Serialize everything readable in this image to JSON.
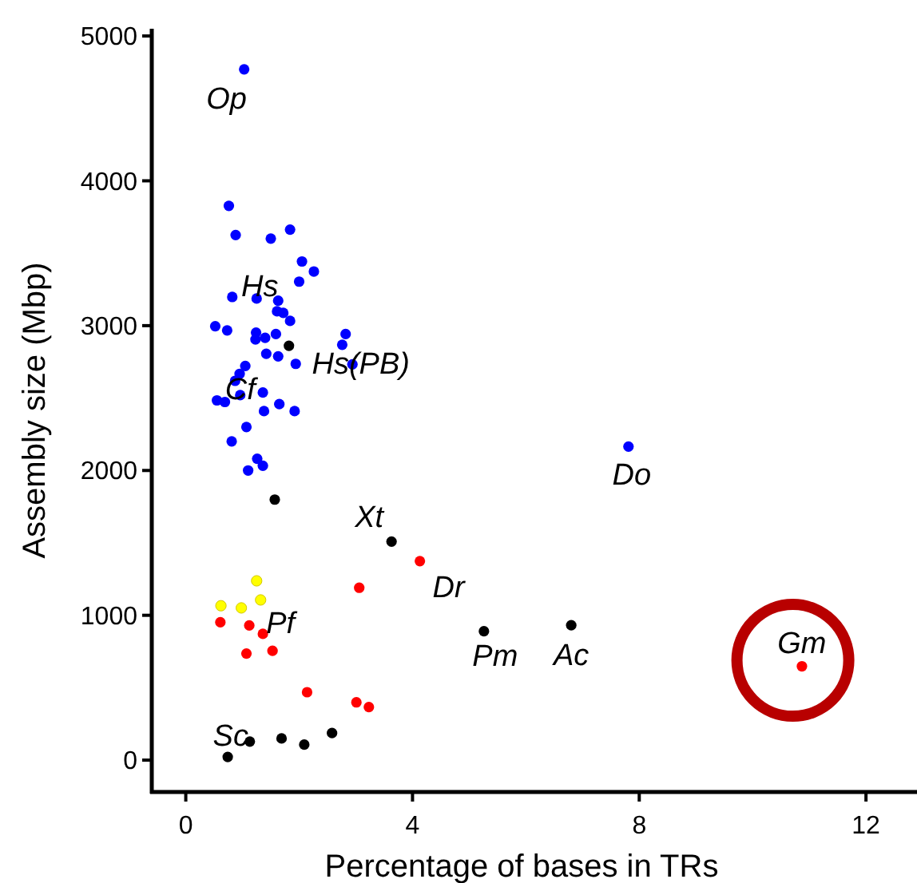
{
  "chart_data": {
    "type": "scatter",
    "xlabel": "Percentage of bases in TRs",
    "ylabel": "Assembly size (Mbp)",
    "xlim": [
      -0.6,
      12.9
    ],
    "ylim": [
      -220,
      5050
    ],
    "xticks": [
      0,
      4,
      8,
      12
    ],
    "yticks": [
      0,
      1000,
      2000,
      3000,
      4000,
      5000
    ],
    "grid": false,
    "marker": "circle",
    "series": [
      {
        "color": "#0000ff",
        "x": [
          1.03,
          0.76,
          0.88,
          1.5,
          1.84,
          2.05,
          2.26,
          2.0,
          0.82,
          1.25,
          1.63,
          1.61,
          1.72,
          1.84,
          0.52,
          0.73,
          1.24,
          1.23,
          1.4,
          1.59,
          2.82,
          2.76,
          2.94,
          1.42,
          1.63,
          1.94,
          1.05,
          0.95,
          0.87,
          0.96,
          1.36,
          0.55,
          0.69,
          1.38,
          1.65,
          1.92,
          1.07,
          0.81,
          1.1,
          1.26,
          1.36,
          7.81
        ],
        "values": [
          4770,
          3827,
          3626,
          3601,
          3663,
          3443,
          3374,
          3304,
          3198,
          3187,
          3172,
          3099,
          3088,
          3033,
          2996,
          2967,
          2952,
          2905,
          2916,
          2942,
          2942,
          2868,
          2733,
          2806,
          2788,
          2736,
          2722,
          2667,
          2619,
          2520,
          2538,
          2484,
          2473,
          2410,
          2458,
          2410,
          2300,
          2201,
          2000,
          2081,
          2033,
          2165
        ]
      },
      {
        "color": "#000000",
        "x": [
          1.82,
          1.57,
          3.63,
          5.26,
          6.8,
          0.74,
          1.13,
          1.69,
          2.09,
          2.58
        ],
        "values": [
          2861,
          1799,
          1509,
          890,
          931,
          22,
          128,
          150,
          107,
          187
        ]
      },
      {
        "color": "#ff0000",
        "x": [
          4.13,
          3.06,
          0.61,
          1.12,
          1.36,
          1.07,
          1.53,
          2.14,
          3.01,
          3.23,
          10.87
        ],
        "values": [
          1374,
          1190,
          952,
          930,
          872,
          736,
          755,
          469,
          399,
          366,
          648
        ]
      },
      {
        "color": "#ffff00",
        "x": [
          1.25,
          0.62,
          0.98,
          1.32
        ],
        "values": [
          1238,
          1066,
          1051,
          1106
        ]
      }
    ],
    "annotations": [
      {
        "text": "Op",
        "x": 1.03,
        "y": 4770
      },
      {
        "text": "Hs",
        "x": 1.25,
        "y": 3187
      },
      {
        "text": "Hs(PB)",
        "x": 1.82,
        "y": 2861
      },
      {
        "text": "Cf",
        "x": 0.96,
        "y": 2520
      },
      {
        "text": "Xt",
        "x": 3.63,
        "y": 1509
      },
      {
        "text": "Dr",
        "x": 4.13,
        "y": 1374
      },
      {
        "text": "Pf",
        "x": 1.36,
        "y": 872
      },
      {
        "text": "Pm",
        "x": 5.26,
        "y": 890
      },
      {
        "text": "Ac",
        "x": 6.8,
        "y": 931
      },
      {
        "text": "Do",
        "x": 7.81,
        "y": 2165
      },
      {
        "text": "Gm",
        "x": 10.87,
        "y": 648
      },
      {
        "text": "Sc",
        "x": 1.13,
        "y": 128
      }
    ]
  }
}
